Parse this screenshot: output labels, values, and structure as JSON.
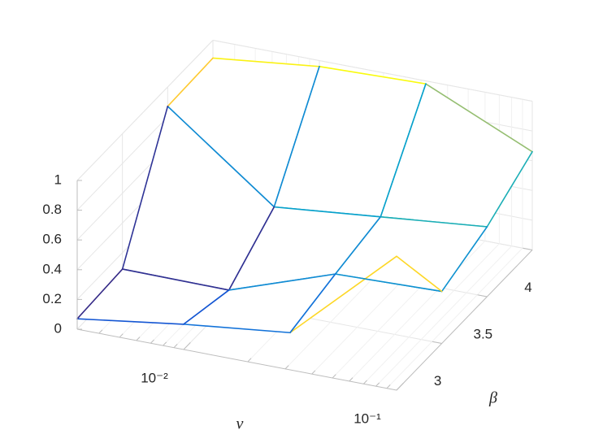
{
  "chart_data": {
    "type": "mesh",
    "x_label": "ν",
    "y_label": "β",
    "x": [
      0.0031623,
      0.01,
      0.031623,
      0.1
    ],
    "y": [
      2.5,
      3,
      3.5,
      4
    ],
    "z": [
      [
        0.07,
        0.17,
        0.25,
        0.9
      ],
      [
        0.09,
        0.085,
        0.33,
        0.35
      ],
      [
        0.87,
        0.33,
        0.4,
        0.47
      ],
      [
        0.88,
        0.96,
        0.98,
        0.66
      ]
    ],
    "xscale": "log",
    "xlim": [
      0.0031623,
      0.1
    ],
    "ylim": [
      2.5,
      4
    ],
    "zlim": [
      0,
      1
    ],
    "xticks": [
      {
        "value": 0.01,
        "label": "10⁻²"
      },
      {
        "value": 0.1,
        "label": "10⁻¹"
      }
    ],
    "yticks": [
      3,
      3.5,
      4
    ],
    "zticks": [
      0,
      0.2,
      0.4,
      0.6,
      0.8,
      1
    ],
    "grid": true,
    "colormap": "parula"
  }
}
